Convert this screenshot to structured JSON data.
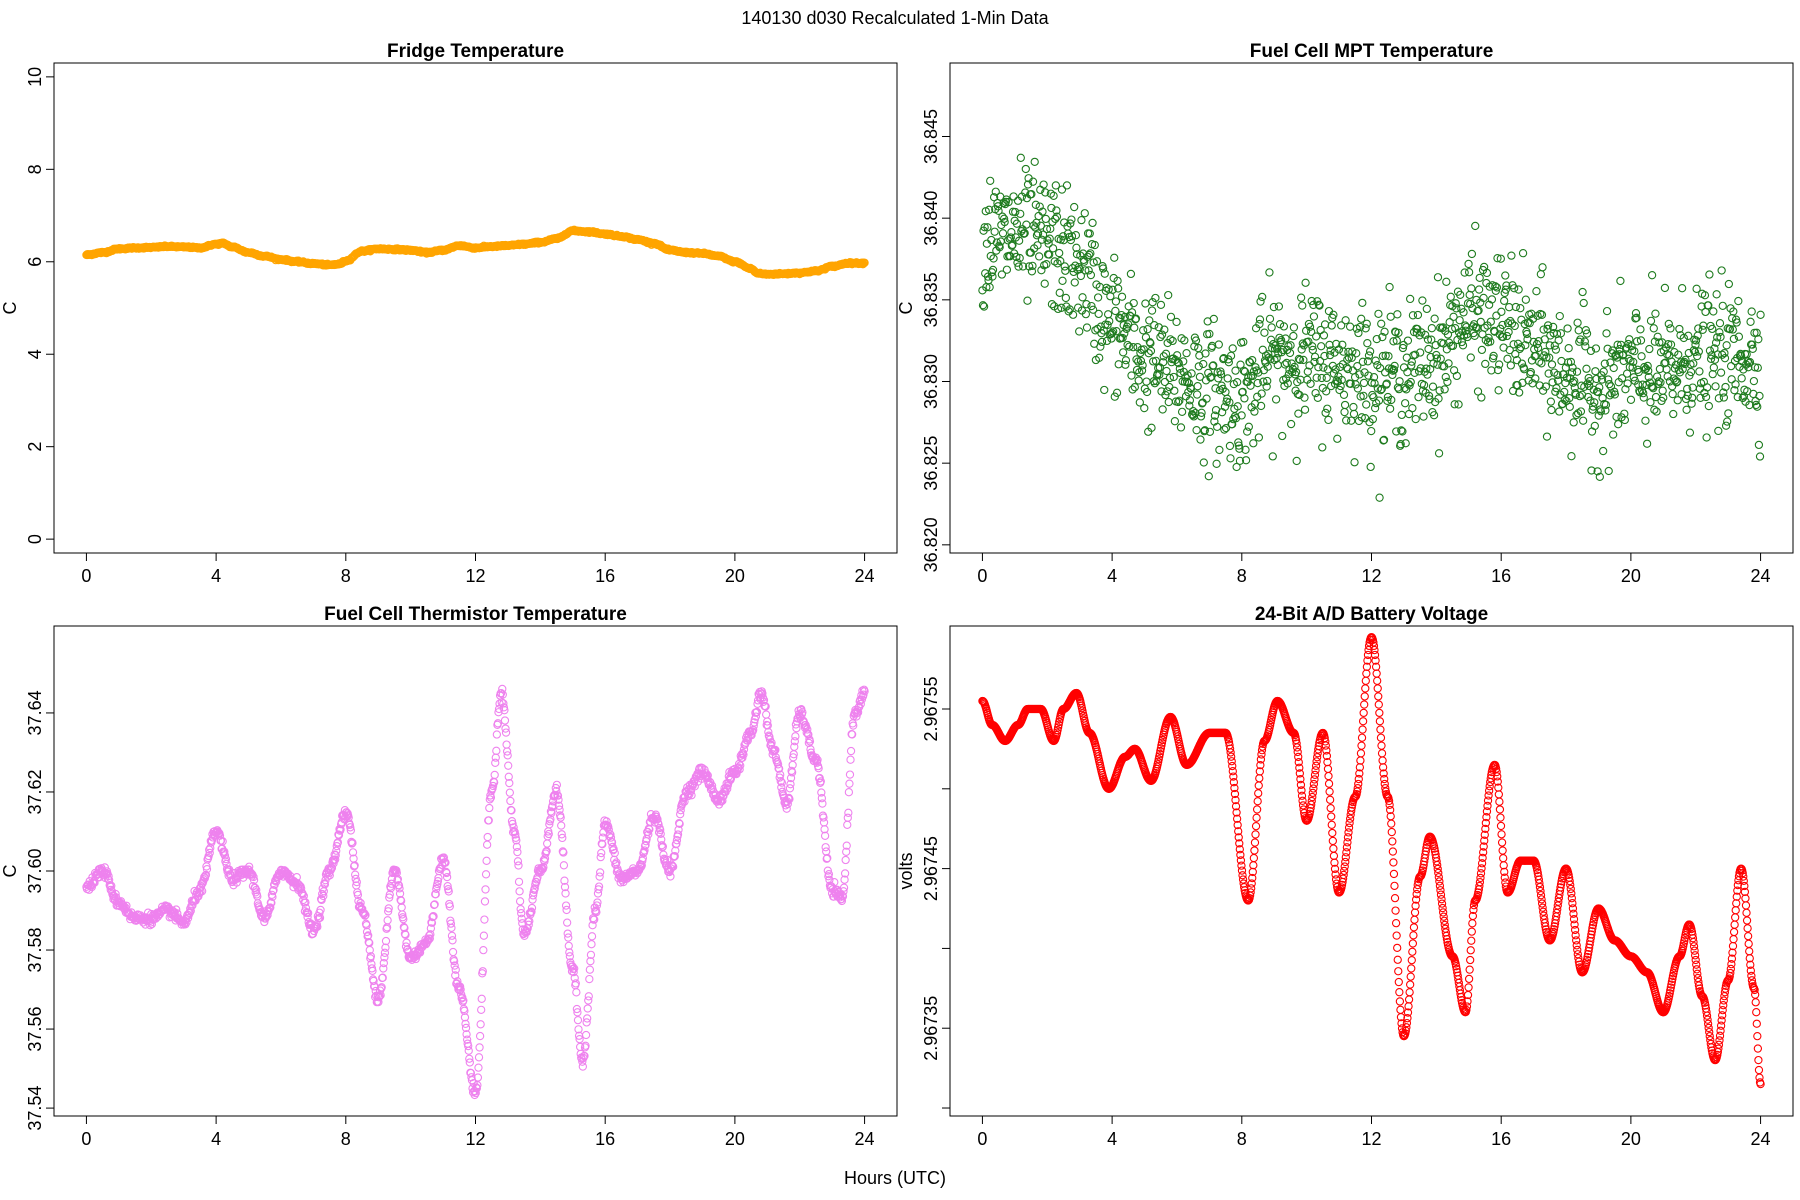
{
  "figure": {
    "title": "140130   d030   Recalculated 1-Min Data",
    "xlabel": "Hours (UTC)"
  },
  "chart_data": [
    {
      "type": "scatter",
      "title": "Fridge Temperature",
      "xlabel": "",
      "ylabel": "C",
      "xlim": [
        -1,
        25
      ],
      "ylim": [
        -0.3,
        10.3
      ],
      "xticks": [
        0,
        4,
        8,
        12,
        16,
        20,
        24
      ],
      "yticks": [
        0,
        2,
        4,
        6,
        8,
        10
      ],
      "ytick_labels": [
        "0",
        "2",
        "4",
        "6",
        "8",
        "10"
      ],
      "color": "#FFA500",
      "marker": "open-circle",
      "density": 1440,
      "jitter": 0.02,
      "series": [
        {
          "x": [
            0,
            0.5,
            1,
            1.5,
            2,
            2.5,
            3,
            3.5,
            4,
            4.2,
            4.5,
            5,
            5.5,
            6,
            6.5,
            7,
            7.5,
            7.8,
            8,
            8.5,
            9,
            9.5,
            10,
            10.5,
            11,
            11.5,
            12,
            12.5,
            13,
            13.5,
            14,
            14.5,
            15,
            15.5,
            16,
            16.5,
            17,
            17.5,
            18,
            18.5,
            19,
            19.5,
            20,
            20.5,
            20.7,
            21,
            21.5,
            22,
            22.5,
            23,
            23.5,
            24
          ],
          "y": [
            6.15,
            6.2,
            6.28,
            6.3,
            6.31,
            6.33,
            6.32,
            6.3,
            6.38,
            6.4,
            6.32,
            6.2,
            6.12,
            6.05,
            6.0,
            5.96,
            5.93,
            5.95,
            6.02,
            6.23,
            6.28,
            6.27,
            6.25,
            6.2,
            6.25,
            6.35,
            6.3,
            6.33,
            6.35,
            6.38,
            6.42,
            6.5,
            6.67,
            6.65,
            6.6,
            6.55,
            6.48,
            6.4,
            6.25,
            6.2,
            6.18,
            6.12,
            6.0,
            5.85,
            5.75,
            5.73,
            5.74,
            5.76,
            5.8,
            5.9,
            5.97,
            5.97
          ]
        }
      ]
    },
    {
      "type": "scatter",
      "title": "Fuel Cell MPT Temperature",
      "xlabel": "",
      "ylabel": "C",
      "xlim": [
        -1,
        25
      ],
      "ylim": [
        36.8195,
        36.8495
      ],
      "xticks": [
        0,
        4,
        8,
        12,
        16,
        20,
        24
      ],
      "yticks": [
        36.82,
        36.825,
        36.83,
        36.835,
        36.84,
        36.845
      ],
      "ytick_labels": [
        "36.820",
        "36.825",
        "36.830",
        "36.835",
        "36.840",
        "36.845"
      ],
      "color": "#1E7B1E",
      "marker": "open-circle",
      "density": 1400,
      "jitter": 0.0045,
      "series": [
        {
          "x": [
            0,
            1,
            2,
            3,
            4,
            5,
            6,
            7,
            8,
            9,
            10,
            11,
            12,
            13,
            14,
            15,
            16,
            17,
            18,
            19,
            20,
            21,
            22,
            23,
            24
          ],
          "y": [
            36.8385,
            36.839,
            36.8385,
            36.837,
            36.8335,
            36.8315,
            36.8305,
            36.8295,
            36.829,
            36.8315,
            36.8315,
            36.831,
            36.8305,
            36.8305,
            36.8315,
            36.834,
            36.8335,
            36.832,
            36.8305,
            36.8295,
            36.8305,
            36.8305,
            36.8315,
            36.8315,
            36.8315
          ]
        }
      ]
    },
    {
      "type": "scatter",
      "title": "Fuel Cell Thermistor Temperature",
      "xlabel": "",
      "ylabel": "C",
      "xlim": [
        -1,
        25
      ],
      "ylim": [
        37.538,
        37.662
      ],
      "xticks": [
        0,
        4,
        8,
        12,
        16,
        20,
        24
      ],
      "yticks": [
        37.54,
        37.56,
        37.58,
        37.6,
        37.62,
        37.64
      ],
      "ytick_labels": [
        "37.54",
        "37.56",
        "37.58",
        "37.60",
        "37.62",
        "37.64"
      ],
      "color": "#EE82EE",
      "marker": "open-circle",
      "density": 1440,
      "jitter": 0.0015,
      "series": [
        {
          "x": [
            0,
            0.5,
            1,
            1.5,
            2,
            2.5,
            3,
            3.5,
            4,
            4.5,
            5,
            5.5,
            6,
            6.5,
            7,
            7.5,
            8,
            8.5,
            9,
            9.5,
            10,
            10.5,
            11,
            11.5,
            12,
            12.5,
            12.8,
            13.2,
            13.5,
            14,
            14.5,
            15,
            15.3,
            15.7,
            16,
            16.5,
            17,
            17.5,
            18,
            18.5,
            19,
            19.5,
            20,
            20.5,
            20.8,
            21.2,
            21.6,
            22,
            22.5,
            23,
            23.3,
            23.7,
            24
          ],
          "y": [
            37.596,
            37.6,
            37.592,
            37.588,
            37.588,
            37.59,
            37.587,
            37.595,
            37.61,
            37.598,
            37.6,
            37.588,
            37.6,
            37.597,
            37.585,
            37.6,
            37.615,
            37.59,
            37.568,
            37.6,
            37.578,
            37.582,
            37.603,
            37.57,
            37.544,
            37.62,
            37.645,
            37.61,
            37.584,
            37.6,
            37.62,
            37.575,
            37.552,
            37.59,
            37.612,
            37.598,
            37.6,
            37.614,
            37.6,
            37.62,
            37.625,
            37.618,
            37.625,
            37.635,
            37.645,
            37.63,
            37.617,
            37.64,
            37.628,
            37.595,
            37.593,
            37.64,
            37.645
          ]
        }
      ]
    },
    {
      "type": "scatter",
      "title": "24-Bit A/D Battery Voltage",
      "xlabel": "",
      "ylabel": "volts",
      "xlim": [
        -1,
        25
      ],
      "ylim": [
        2.967295,
        2.967602
      ],
      "xticks": [
        0,
        4,
        8,
        12,
        16,
        20,
        24
      ],
      "yticks": [
        2.96735,
        2.96745,
        2.96755
      ],
      "ytick_labels": [
        "2.96735",
        "2.96745",
        "2.96755"
      ],
      "minor_yticks": [
        2.9673,
        2.9674,
        2.9675
      ],
      "color": "#FF0000",
      "marker": "open-circle",
      "density": 1440,
      "jitter": 0,
      "series": [
        {
          "x": [
            0,
            0.3,
            0.7,
            1.1,
            1.4,
            1.8,
            2.2,
            2.5,
            2.9,
            3.3,
            3.9,
            4.4,
            4.7,
            5.2,
            5.8,
            6.3,
            7.0,
            7.5,
            8.2,
            8.7,
            9.1,
            9.6,
            10.0,
            10.5,
            11.0,
            11.5,
            12.0,
            12.5,
            13.0,
            13.5,
            13.8,
            14.5,
            14.9,
            15.2,
            15.8,
            16.2,
            16.6,
            17.0,
            17.5,
            18.0,
            18.5,
            19.0,
            19.5,
            20.0,
            20.5,
            21.0,
            21.5,
            21.8,
            22.2,
            22.6,
            23.0,
            23.4,
            23.8,
            24.0
          ],
          "y": [
            2.967555,
            2.96754,
            2.96753,
            2.96754,
            2.96755,
            2.96755,
            2.96753,
            2.96755,
            2.96756,
            2.967535,
            2.9675,
            2.96752,
            2.967525,
            2.967505,
            2.967545,
            2.967515,
            2.967535,
            2.967535,
            2.96743,
            2.96753,
            2.967555,
            2.967535,
            2.96748,
            2.967535,
            2.967435,
            2.967495,
            2.967595,
            2.967495,
            2.967345,
            2.967445,
            2.96747,
            2.967395,
            2.96736,
            2.96743,
            2.967515,
            2.967435,
            2.967455,
            2.967455,
            2.967405,
            2.96745,
            2.967385,
            2.967425,
            2.967405,
            2.967395,
            2.967385,
            2.96736,
            2.967395,
            2.967415,
            2.96737,
            2.96733,
            2.96738,
            2.96745,
            2.967375,
            2.967315
          ]
        }
      ]
    }
  ]
}
